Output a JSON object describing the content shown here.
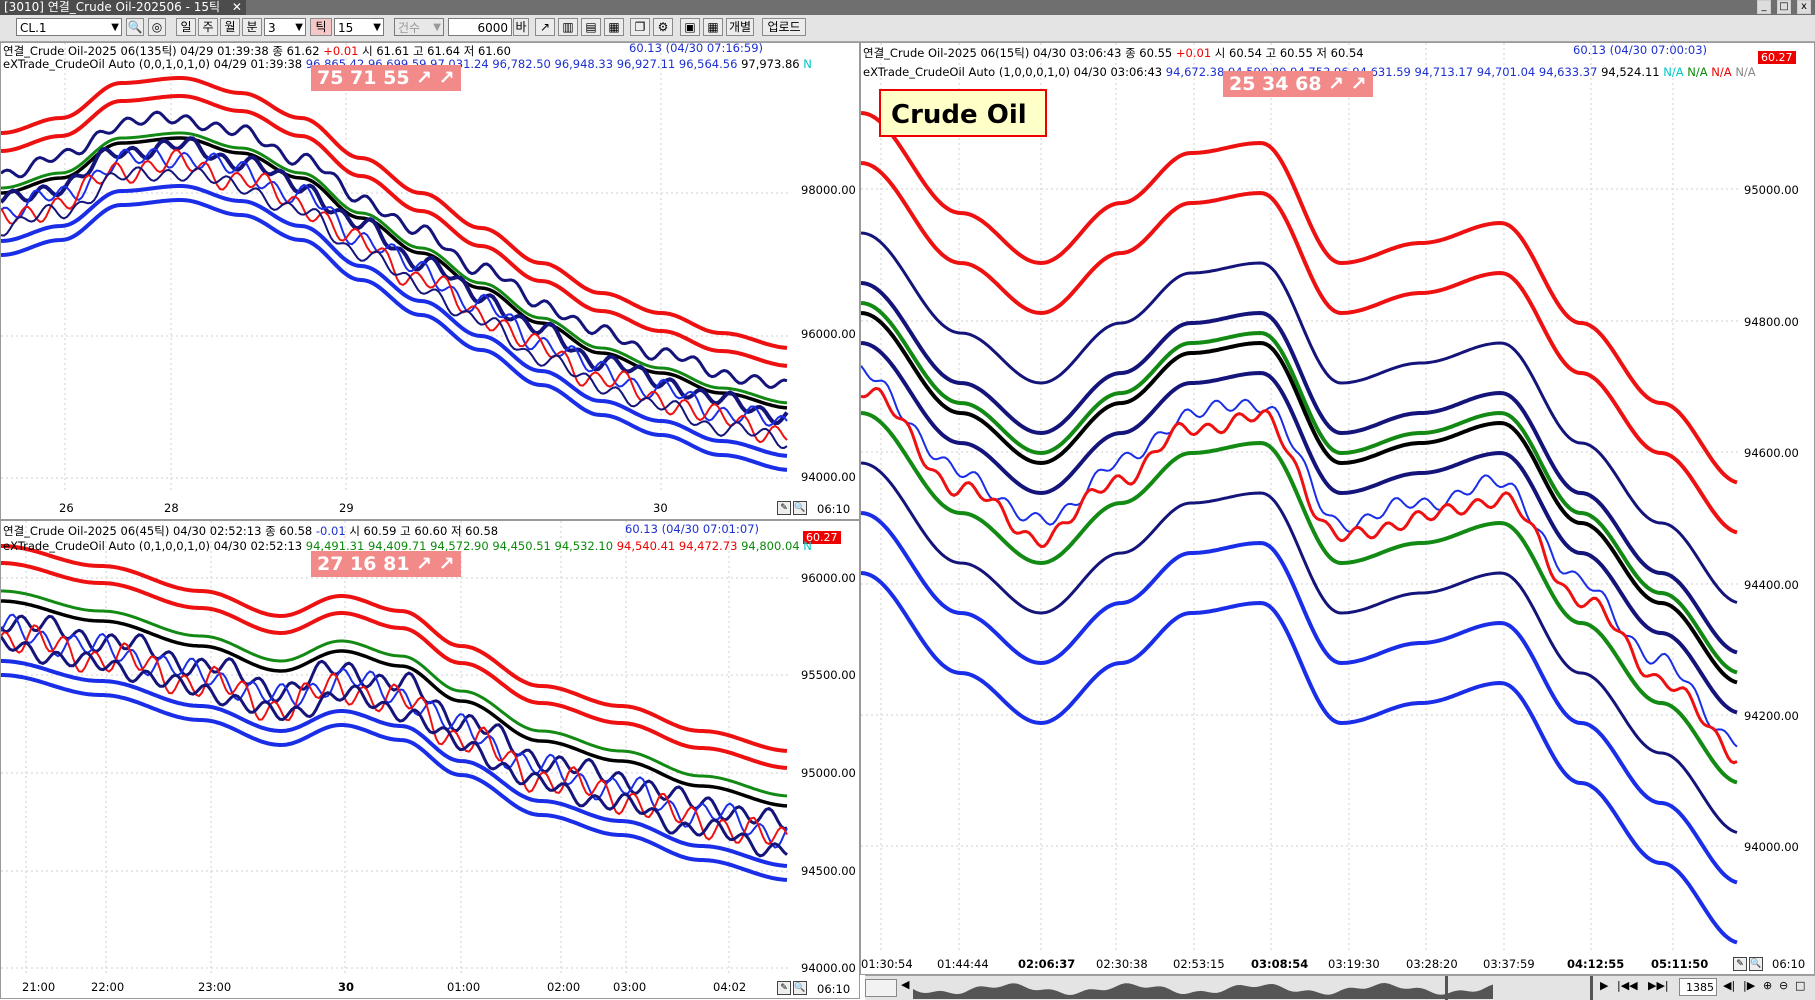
{
  "window": {
    "title": "[3010] 연결_Crude Oil-202506 - 15틱",
    "close": "✕"
  },
  "toolbar": {
    "symbol": "CL.1",
    "period_buttons": [
      "일",
      "주",
      "월",
      "분"
    ],
    "minute_value": "3",
    "tick_label": "틱",
    "tick_value": "15",
    "count_label": "건수",
    "count_value": "6000",
    "bar_label": "바",
    "individual_label": "개별",
    "upload_label": "업로드"
  },
  "pane_top_left": {
    "header1_text": "연결_Crude Oil-2025 06(135틱) 04/29 01:39:38  종 61.62",
    "header1_change": "+0.01",
    "header1_ohl": "시 61.61  고 61.64  저 61.60",
    "header1_right": "60.13 (04/30 07:16:59)",
    "header2_name": "eXTrade_CrudeOil Auto  (0,0,1,0,1,0) 04/29 01:39:38",
    "header2_vals": "96,865.42  96,699.59  97,031.24  96,782.50  96,948.33  96,927.11  96,564.56",
    "header2_last": "97,973.86",
    "header2_na": "N",
    "stats": "75  71  55 ↗ ↗",
    "y_labels": [
      "98000.00",
      "96000.00",
      "94000.00"
    ],
    "x_labels": [
      "26",
      "28",
      "29",
      "30"
    ],
    "time": "06:10"
  },
  "pane_bottom_left": {
    "header1_text": "연결_Crude Oil-2025 06(45틱) 04/30 02:52:13  종 60.58",
    "header1_change": "-0.01",
    "header1_ohl": "시 60.59  고 60.60  저 60.58",
    "header1_right": "60.13 (04/30 07:01:07)",
    "header2_name": "eXTrade_CrudeOil Auto  (0,1,0,0,1,0) 04/30 02:52:13",
    "header2_vals1": "94,491.31  94,409.71  94,572.90  94,450.51  94,532.10",
    "header2_vals2": "94,540.41  94,472.73",
    "header2_vals3": "94,800.04",
    "header2_na": "N",
    "stats": "27  16  81 ↗ ↗",
    "price_tag": "60.27",
    "y_labels": [
      "96000.00",
      "95500.00",
      "95000.00",
      "94500.00",
      "94000.00"
    ],
    "x_labels": [
      "21:00",
      "22:00",
      "23:00",
      "30",
      "01:00",
      "02:00",
      "03:00",
      "04:02"
    ],
    "time": "06:10"
  },
  "pane_right": {
    "header1_text": "연결_Crude Oil-2025 06(15틱) 04/30 03:06:43  종 60.55",
    "header1_change": "+0.01",
    "header1_ohl": "시 60.54  고 60.55  저 60.54",
    "header1_right": "60.13 (04/30 07:00:03)",
    "header2_name": "eXTrade_CrudeOil Auto  (1,0,0,0,1,0) 04/30 03:06:43",
    "header2_vals1": "94,672.38  94,590.80  94,753.96  94,631.59  94,713.17  94,701.04  94,633.37",
    "header2_vals2": "94,524.11",
    "header2_na1": "N/A",
    "header2_na2": "N/A",
    "header2_na3": "N/A",
    "header2_na4": "N/A",
    "stats": "25  34  68 ↗ ↗",
    "label": "Crude Oil",
    "price_tag": "60.27",
    "y_labels": [
      "95000.00",
      "94800.00",
      "94600.00",
      "94400.00",
      "94200.00",
      "94000.00"
    ],
    "x_labels": [
      "01:30:54",
      "01:44:44",
      "02:06:37",
      "02:30:38",
      "02:53:15",
      "03:08:54",
      "03:19:30",
      "03:28:20",
      "03:37:59",
      "04:12:55",
      "05:11:50"
    ],
    "time": "06:10",
    "scroll_count": "1385"
  },
  "colors": {
    "band_red": "#ee1111",
    "band_blue": "#1a2ee8",
    "band_navy": "#14147a",
    "band_green": "#138a13",
    "midline": "#000000",
    "stats_bg": "#f28a8a"
  }
}
